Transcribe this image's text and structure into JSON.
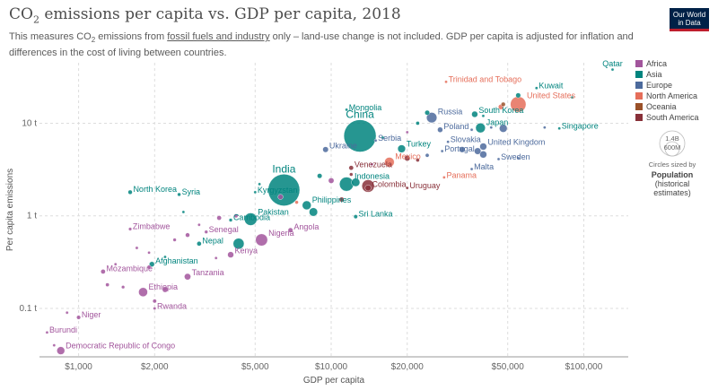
{
  "header": {
    "title_main": "CO",
    "title_sub": "2",
    "title_rest": " emissions per capita vs. GDP per capita, 2018",
    "subtitle_a": "This measures CO",
    "subtitle_sub": "2",
    "subtitle_b": " emissions from ",
    "subtitle_link": "fossil fuels and industry",
    "subtitle_c": " only – land-use change is not included. GDP per capita is adjusted for inflation and differences in the cost of living between countries.",
    "logo_line1": "Our World",
    "logo_line2": "in Data"
  },
  "size_legend": {
    "circle_label": "1.4B",
    "circle_label2": "600M",
    "caption": "Circles sized by",
    "var_line1": "Population",
    "var_line2": "(historical",
    "var_line3": "estimates)"
  },
  "colors": {
    "Africa": "#a2559c",
    "Asia": "#00847e",
    "Europe": "#4c6a9c",
    "North America": "#e56e5a",
    "Oceania": "#9a5129",
    "South America": "#883039"
  },
  "chart_data": {
    "type": "scatter",
    "title": "CO₂ emissions per capita vs. GDP per capita, 2018",
    "xlabel": "GDP per capita",
    "ylabel": "Per capita emissions",
    "xscale": "log",
    "yscale": "log",
    "xlim": [
      700,
      150000
    ],
    "ylim": [
      0.03,
      45
    ],
    "xticks": [
      {
        "v": 1000,
        "label": "$1,000"
      },
      {
        "v": 2000,
        "label": "$2,000"
      },
      {
        "v": 5000,
        "label": "$5,000"
      },
      {
        "v": 10000,
        "label": "$10,000"
      },
      {
        "v": 20000,
        "label": "$20,000"
      },
      {
        "v": 50000,
        "label": "$50,000"
      },
      {
        "v": 100000,
        "label": "$100,000"
      }
    ],
    "yticks": [
      {
        "v": 0.1,
        "label": "0.1 t"
      },
      {
        "v": 1,
        "label": "1 t"
      },
      {
        "v": 10,
        "label": "10 t"
      }
    ],
    "legend": [
      "Africa",
      "Asia",
      "Europe",
      "North America",
      "Oceania",
      "South America"
    ],
    "legend_position": "right",
    "grid": true,
    "points": [
      {
        "name": "Qatar",
        "gdp": 130000,
        "co2": 38,
        "region": "Asia",
        "pop": 2.8,
        "label": true
      },
      {
        "name": "Trinidad and Tobago",
        "gdp": 28500,
        "co2": 28,
        "region": "North America",
        "pop": 1.4,
        "label": true
      },
      {
        "name": "Kuwait",
        "gdp": 65000,
        "co2": 24,
        "region": "Asia",
        "pop": 4.1,
        "label": true
      },
      {
        "name": "United States",
        "gdp": 55000,
        "co2": 16,
        "region": "North America",
        "pop": 327,
        "label": true
      },
      {
        "name": "Mongolia",
        "gdp": 11500,
        "co2": 14,
        "region": "Asia",
        "pop": 3.2,
        "label": true
      },
      {
        "name": "South Korea",
        "gdp": 37000,
        "co2": 12.5,
        "region": "Asia",
        "pop": 51,
        "label": true
      },
      {
        "name": "Russia",
        "gdp": 25000,
        "co2": 11.5,
        "region": "Europe",
        "pop": 145,
        "label": true
      },
      {
        "name": "China",
        "gdp": 13000,
        "co2": 7.3,
        "region": "Asia",
        "pop": 1400,
        "label": true
      },
      {
        "name": "Poland",
        "gdp": 27000,
        "co2": 8.5,
        "region": "Europe",
        "pop": 38,
        "label": true
      },
      {
        "name": "Japan",
        "gdp": 39000,
        "co2": 8.9,
        "region": "Asia",
        "pop": 126,
        "label": true
      },
      {
        "name": "Singapore",
        "gdp": 80000,
        "co2": 8.8,
        "region": "Asia",
        "pop": 5.8,
        "label": true
      },
      {
        "name": "Serbia",
        "gdp": 15000,
        "co2": 6.5,
        "region": "Europe",
        "pop": 7,
        "label": true
      },
      {
        "name": "Slovakia",
        "gdp": 29000,
        "co2": 6.3,
        "region": "Europe",
        "pop": 5.4,
        "label": true
      },
      {
        "name": "Ukraine",
        "gdp": 9500,
        "co2": 5.2,
        "region": "Europe",
        "pop": 44,
        "label": true
      },
      {
        "name": "Turkey",
        "gdp": 19000,
        "co2": 5.3,
        "region": "Asia",
        "pop": 82,
        "label": true
      },
      {
        "name": "United Kingdom",
        "gdp": 40000,
        "co2": 5.6,
        "region": "Europe",
        "pop": 66,
        "label": true
      },
      {
        "name": "Portugal",
        "gdp": 27500,
        "co2": 5.0,
        "region": "Europe",
        "pop": 10,
        "label": true
      },
      {
        "name": "Mexico",
        "gdp": 17000,
        "co2": 3.8,
        "region": "North America",
        "pop": 126,
        "label": true
      },
      {
        "name": "Sweden",
        "gdp": 46000,
        "co2": 4.1,
        "region": "Europe",
        "pop": 10,
        "label": true
      },
      {
        "name": "Venezuela",
        "gdp": 12000,
        "co2": 3.3,
        "region": "South America",
        "pop": 29,
        "label": true
      },
      {
        "name": "Malta",
        "gdp": 36000,
        "co2": 3.2,
        "region": "Europe",
        "pop": 0.5,
        "label": true
      },
      {
        "name": "India",
        "gdp": 6500,
        "co2": 1.9,
        "region": "Asia",
        "pop": 1350,
        "label": true
      },
      {
        "name": "Panama",
        "gdp": 28000,
        "co2": 2.6,
        "region": "North America",
        "pop": 4.2,
        "label": true
      },
      {
        "name": "Indonesia",
        "gdp": 11500,
        "co2": 2.2,
        "region": "Asia",
        "pop": 267,
        "label": true
      },
      {
        "name": "North Korea",
        "gdp": 1600,
        "co2": 1.8,
        "region": "Asia",
        "pop": 25,
        "label": true
      },
      {
        "name": "Syria",
        "gdp": 2500,
        "co2": 1.7,
        "region": "Asia",
        "pop": 17,
        "label": true
      },
      {
        "name": "Kyrgyzstan",
        "gdp": 5000,
        "co2": 1.8,
        "region": "Asia",
        "pop": 6.3,
        "label": true
      },
      {
        "name": "Colombia",
        "gdp": 14000,
        "co2": 2.0,
        "region": "South America",
        "pop": 49,
        "label": true
      },
      {
        "name": "Uruguay",
        "gdp": 20000,
        "co2": 2.0,
        "region": "South America",
        "pop": 3.5,
        "label": true
      },
      {
        "name": "Philippines",
        "gdp": 8000,
        "co2": 1.3,
        "region": "Asia",
        "pop": 107,
        "label": true
      },
      {
        "name": "Sri Lanka",
        "gdp": 12500,
        "co2": 0.98,
        "region": "Asia",
        "pop": 21,
        "label": true
      },
      {
        "name": "Cambodia",
        "gdp": 4000,
        "co2": 0.9,
        "region": "Asia",
        "pop": 16,
        "label": true
      },
      {
        "name": "Pakistan",
        "gdp": 4800,
        "co2": 0.92,
        "region": "Asia",
        "pop": 212,
        "label": true
      },
      {
        "name": "Zimbabwe",
        "gdp": 1600,
        "co2": 0.72,
        "region": "Africa",
        "pop": 14,
        "label": true
      },
      {
        "name": "Senegal",
        "gdp": 3200,
        "co2": 0.67,
        "region": "Africa",
        "pop": 16,
        "label": true
      },
      {
        "name": "Angola",
        "gdp": 6900,
        "co2": 0.7,
        "region": "Africa",
        "pop": 31,
        "label": true
      },
      {
        "name": "Nepal",
        "gdp": 3000,
        "co2": 0.5,
        "region": "Asia",
        "pop": 28,
        "label": true
      },
      {
        "name": "Nigeria",
        "gdp": 5300,
        "co2": 0.55,
        "region": "Africa",
        "pop": 196,
        "label": true
      },
      {
        "name": "Kenya",
        "gdp": 4000,
        "co2": 0.38,
        "region": "Africa",
        "pop": 51,
        "label": true
      },
      {
        "name": "Afghanistan",
        "gdp": 1950,
        "co2": 0.3,
        "region": "Asia",
        "pop": 37,
        "label": true
      },
      {
        "name": "Mozambique",
        "gdp": 1250,
        "co2": 0.25,
        "region": "Africa",
        "pop": 29,
        "label": true
      },
      {
        "name": "Tanzania",
        "gdp": 2700,
        "co2": 0.22,
        "region": "Africa",
        "pop": 56,
        "label": true
      },
      {
        "name": "Ethiopia",
        "gdp": 1800,
        "co2": 0.15,
        "region": "Africa",
        "pop": 109,
        "label": true
      },
      {
        "name": "Rwanda",
        "gdp": 2000,
        "co2": 0.1,
        "region": "Africa",
        "pop": 12,
        "label": true
      },
      {
        "name": "Niger",
        "gdp": 1000,
        "co2": 0.08,
        "region": "Africa",
        "pop": 22,
        "label": true
      },
      {
        "name": "Burundi",
        "gdp": 750,
        "co2": 0.055,
        "region": "Africa",
        "pop": 11,
        "label": true
      },
      {
        "name": "Democratic Republic of Congo",
        "gdp": 850,
        "co2": 0.035,
        "region": "Africa",
        "pop": 84,
        "label": true
      },
      {
        "name": "",
        "gdp": 90000,
        "co2": 19,
        "region": "Asia",
        "pop": 9.6,
        "label": false
      },
      {
        "name": "",
        "gdp": 55000,
        "co2": 20,
        "region": "Asia",
        "pop": 33,
        "label": false
      },
      {
        "name": "",
        "gdp": 48000,
        "co2": 16,
        "region": "Oceania",
        "pop": 25,
        "label": false
      },
      {
        "name": "",
        "gdp": 47000,
        "co2": 15,
        "region": "North America",
        "pop": 37,
        "label": false
      },
      {
        "name": "",
        "gdp": 24000,
        "co2": 13,
        "region": "Asia",
        "pop": 32,
        "label": false
      },
      {
        "name": "",
        "gdp": 40000,
        "co2": 12,
        "region": "Asia",
        "pop": 1.6,
        "label": false
      },
      {
        "name": "",
        "gdp": 43000,
        "co2": 9,
        "region": "Europe",
        "pop": 11,
        "label": false
      },
      {
        "name": "",
        "gdp": 48000,
        "co2": 8.8,
        "region": "Europe",
        "pop": 83,
        "label": false
      },
      {
        "name": "",
        "gdp": 36000,
        "co2": 8.5,
        "region": "Europe",
        "pop": 10.6,
        "label": false
      },
      {
        "name": "",
        "gdp": 22000,
        "co2": 10,
        "region": "Asia",
        "pop": 18,
        "label": false
      },
      {
        "name": "",
        "gdp": 70000,
        "co2": 9,
        "region": "Europe",
        "pop": 8.6,
        "label": false
      },
      {
        "name": "",
        "gdp": 16000,
        "co2": 7,
        "region": "Asia",
        "pop": 3.1,
        "label": false
      },
      {
        "name": "",
        "gdp": 20000,
        "co2": 8,
        "region": "Africa",
        "pop": 6.7,
        "label": false
      },
      {
        "name": "",
        "gdp": 24000,
        "co2": 4.5,
        "region": "Europe",
        "pop": 19.5,
        "label": false
      },
      {
        "name": "",
        "gdp": 33000,
        "co2": 5.2,
        "region": "Europe",
        "pop": 47,
        "label": false
      },
      {
        "name": "",
        "gdp": 38000,
        "co2": 5.0,
        "region": "Europe",
        "pop": 60,
        "label": false
      },
      {
        "name": "",
        "gdp": 40000,
        "co2": 4.6,
        "region": "Europe",
        "pop": 67,
        "label": false
      },
      {
        "name": "",
        "gdp": 55000,
        "co2": 4.2,
        "region": "Europe",
        "pop": 8.5,
        "label": false
      },
      {
        "name": "",
        "gdp": 22000,
        "co2": 4.0,
        "region": "South America",
        "pop": 18,
        "label": false
      },
      {
        "name": "",
        "gdp": 20000,
        "co2": 4.2,
        "region": "South America",
        "pop": 44,
        "label": false
      },
      {
        "name": "",
        "gdp": 14500,
        "co2": 3.6,
        "region": "Africa",
        "pop": 6.7,
        "label": false
      },
      {
        "name": "",
        "gdp": 12000,
        "co2": 2.8,
        "region": "South America",
        "pop": 17,
        "label": false
      },
      {
        "name": "",
        "gdp": 14000,
        "co2": 2.1,
        "region": "South America",
        "pop": 209,
        "label": false
      },
      {
        "name": "",
        "gdp": 10000,
        "co2": 2.4,
        "region": "Africa",
        "pop": 42,
        "label": false
      },
      {
        "name": "",
        "gdp": 12500,
        "co2": 2.3,
        "region": "Asia",
        "pop": 95,
        "label": false
      },
      {
        "name": "",
        "gdp": 9000,
        "co2": 2.7,
        "region": "Asia",
        "pop": 32,
        "label": false
      },
      {
        "name": "",
        "gdp": 5200,
        "co2": 2.2,
        "region": "Asia",
        "pop": 3.5,
        "label": false
      },
      {
        "name": "",
        "gdp": 6300,
        "co2": 1.6,
        "region": "Africa",
        "pop": 36,
        "label": false
      },
      {
        "name": "",
        "gdp": 7300,
        "co2": 1.4,
        "region": "North America",
        "pop": 17,
        "label": false
      },
      {
        "name": "",
        "gdp": 11000,
        "co2": 1.5,
        "region": "South America",
        "pop": 32,
        "label": false
      },
      {
        "name": "",
        "gdp": 8500,
        "co2": 1.1,
        "region": "Asia",
        "pop": 96,
        "label": false
      },
      {
        "name": "",
        "gdp": 4200,
        "co2": 1.0,
        "region": "Africa",
        "pop": 21,
        "label": false
      },
      {
        "name": "",
        "gdp": 3600,
        "co2": 0.95,
        "region": "Africa",
        "pop": 29,
        "label": false
      },
      {
        "name": "",
        "gdp": 2600,
        "co2": 1.1,
        "region": "Asia",
        "pop": 3.2,
        "label": false
      },
      {
        "name": "",
        "gdp": 3000,
        "co2": 0.8,
        "region": "Africa",
        "pop": 8,
        "label": false
      },
      {
        "name": "",
        "gdp": 4300,
        "co2": 0.5,
        "region": "Asia",
        "pop": 161,
        "label": false
      },
      {
        "name": "",
        "gdp": 2700,
        "co2": 0.62,
        "region": "Africa",
        "pop": 26,
        "label": false
      },
      {
        "name": "",
        "gdp": 1900,
        "co2": 0.4,
        "region": "Africa",
        "pop": 11,
        "label": false
      },
      {
        "name": "",
        "gdp": 2200,
        "co2": 0.36,
        "region": "Asia",
        "pop": 8,
        "label": false
      },
      {
        "name": "",
        "gdp": 3500,
        "co2": 0.35,
        "region": "Africa",
        "pop": 6,
        "label": false
      },
      {
        "name": "",
        "gdp": 1900,
        "co2": 0.28,
        "region": "Africa",
        "pop": 19,
        "label": false
      },
      {
        "name": "",
        "gdp": 1300,
        "co2": 0.18,
        "region": "Africa",
        "pop": 18,
        "label": false
      },
      {
        "name": "",
        "gdp": 1500,
        "co2": 0.17,
        "region": "Africa",
        "pop": 15,
        "label": false
      },
      {
        "name": "",
        "gdp": 2200,
        "co2": 0.16,
        "region": "Africa",
        "pop": 43,
        "label": false
      },
      {
        "name": "",
        "gdp": 2000,
        "co2": 0.12,
        "region": "Africa",
        "pop": 20,
        "label": false
      },
      {
        "name": "",
        "gdp": 900,
        "co2": 0.09,
        "region": "Africa",
        "pop": 4.7,
        "label": false
      },
      {
        "name": "",
        "gdp": 800,
        "co2": 0.04,
        "region": "Africa",
        "pop": 4.8,
        "label": false
      },
      {
        "name": "",
        "gdp": 1400,
        "co2": 0.3,
        "region": "Africa",
        "pop": 8,
        "label": false
      },
      {
        "name": "",
        "gdp": 1700,
        "co2": 0.45,
        "region": "Africa",
        "pop": 12,
        "label": false
      },
      {
        "name": "",
        "gdp": 2400,
        "co2": 0.55,
        "region": "Africa",
        "pop": 16,
        "label": false
      }
    ]
  }
}
